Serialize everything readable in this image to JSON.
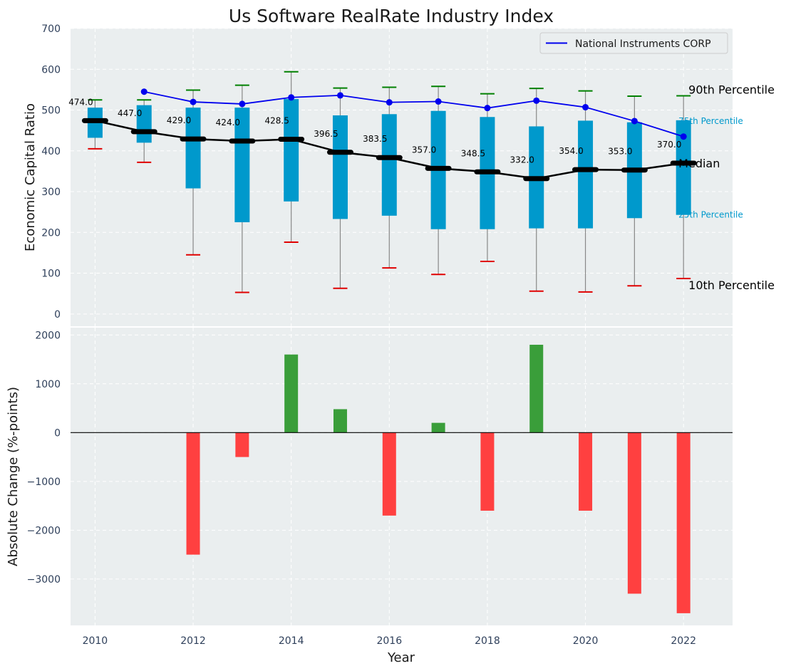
{
  "chart_data": [
    {
      "type": "box",
      "title": "Us Software RealRate Industry Index",
      "xlabel": "",
      "ylabel": "Economic Capital Ratio",
      "ylim": [
        -30,
        700
      ],
      "yticks": [
        0,
        100,
        200,
        300,
        400,
        500,
        600,
        700
      ],
      "grid": true,
      "years": [
        2010,
        2011,
        2012,
        2013,
        2014,
        2015,
        2016,
        2017,
        2018,
        2019,
        2020,
        2021,
        2022
      ],
      "p90": [
        525,
        525,
        549,
        561,
        594,
        554,
        556,
        558,
        540,
        553,
        547,
        534,
        535
      ],
      "p75": [
        506,
        512,
        506,
        506,
        527,
        487,
        490,
        498,
        483,
        460,
        474,
        470,
        475
      ],
      "median": [
        474.0,
        447.0,
        429.0,
        424.0,
        428.5,
        396.5,
        383.5,
        357.0,
        348.5,
        332.0,
        354.0,
        353.0,
        370.0
      ],
      "median_labels": [
        "474.0",
        "447.0",
        "429.0",
        "424.0",
        "428.5",
        "396.5",
        "383.5",
        "357.0",
        "348.5",
        "332.0",
        "354.0",
        "353.0",
        "370.0"
      ],
      "p25": [
        432,
        420,
        308,
        225,
        276,
        233,
        241,
        208,
        208,
        210,
        210,
        235,
        243
      ],
      "p10": [
        405,
        372,
        145,
        53,
        176,
        63,
        113,
        97,
        129,
        56,
        54,
        69,
        87
      ],
      "company": {
        "name": "National Instruments CORP",
        "years": [
          2011,
          2012,
          2013,
          2014,
          2015,
          2016,
          2017,
          2018,
          2019,
          2020,
          2021,
          2022
        ],
        "values": [
          545,
          520,
          515,
          531,
          536,
          519,
          521,
          505,
          523,
          507,
          473,
          435
        ]
      },
      "legend": {
        "label": "National Instruments CORP",
        "placement": "top-right"
      },
      "annotations": {
        "p90": "90th Percentile",
        "p75": "75th Percentile",
        "median": "Median",
        "p25": "25th Percentile",
        "p10": "10th Percentile"
      }
    },
    {
      "type": "bar",
      "title": "",
      "xlabel": "Year",
      "ylabel": "Absolute Change (%-points)",
      "ylim": [
        -3950,
        2150
      ],
      "yticks": [
        -3000,
        -2000,
        -1000,
        0,
        1000,
        2000
      ],
      "ytick_labels": [
        "−3000",
        "−2000",
        "−1000",
        "0",
        "1000",
        "2000"
      ],
      "xticks": [
        2010,
        2012,
        2014,
        2016,
        2018,
        2020,
        2022
      ],
      "grid": true,
      "years": [
        2010,
        2011,
        2012,
        2013,
        2014,
        2015,
        2016,
        2017,
        2018,
        2019,
        2020,
        2021,
        2022
      ],
      "values": [
        0,
        0,
        -2500,
        -500,
        1600,
        480,
        -1700,
        200,
        -1600,
        1800,
        -1600,
        -3300,
        -3700
      ]
    }
  ],
  "colors": {
    "panel_bg": "#eaeeef",
    "box": "#0099cc",
    "median": "#000000",
    "company": "#0000ee",
    "p90_cap": "#008000",
    "p10_cap": "#e00000",
    "pos_bar": "#3a9e3a",
    "neg_bar": "#ff4040",
    "text": "#1a1a1a",
    "pct_label": "#0099cc"
  }
}
